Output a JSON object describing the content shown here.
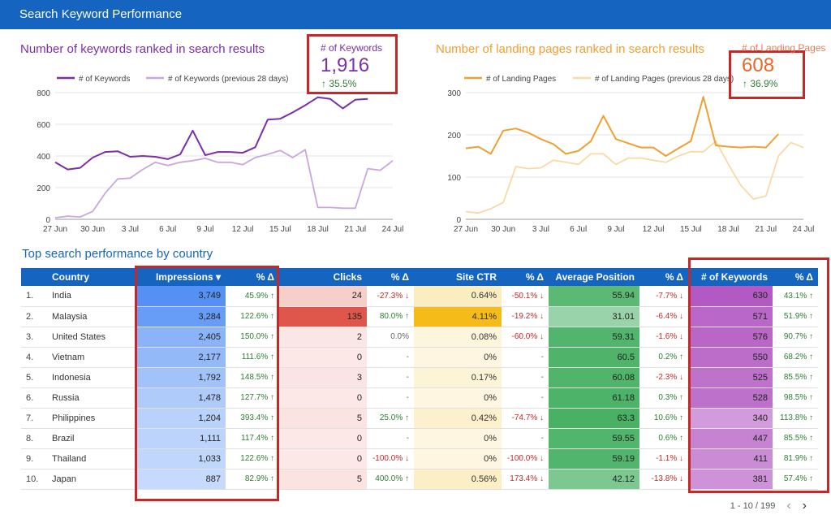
{
  "header": {
    "title": "Search Keyword Performance"
  },
  "chart_data": [
    {
      "type": "line",
      "title": "Number of keywords ranked in search results",
      "x": [
        "27 Jun",
        "28 Jun",
        "29 Jun",
        "30 Jun",
        "1 Jul",
        "2 Jul",
        "3 Jul",
        "4 Jul",
        "5 Jul",
        "6 Jul",
        "7 Jul",
        "8 Jul",
        "9 Jul",
        "10 Jul",
        "11 Jul",
        "12 Jul",
        "13 Jul",
        "14 Jul",
        "15 Jul",
        "16 Jul",
        "17 Jul",
        "18 Jul",
        "19 Jul",
        "20 Jul",
        "21 Jul",
        "22 Jul",
        "23 Jul",
        "24 Jul"
      ],
      "x_ticks": [
        "27 Jun",
        "30 Jun",
        "3 Jul",
        "6 Jul",
        "9 Jul",
        "12 Jul",
        "15 Jul",
        "18 Jul",
        "21 Jul",
        "24 Jul"
      ],
      "ylim": [
        0,
        800
      ],
      "y_ticks": [
        0,
        200,
        400,
        600,
        800
      ],
      "colors": {
        "current": "#7b2fa8",
        "previous": "#c9a6e0"
      },
      "legend": [
        "# of Keywords",
        "# of Keywords (previous 28 days)"
      ],
      "series": [
        {
          "name": "# of Keywords",
          "values": [
            360,
            315,
            325,
            390,
            425,
            430,
            395,
            400,
            395,
            380,
            410,
            560,
            405,
            425,
            425,
            420,
            455,
            630,
            635,
            675,
            720,
            770,
            760,
            700,
            755,
            760,
            null,
            null
          ]
        },
        {
          "name": "# of Keywords (previous 28 days)",
          "values": [
            10,
            20,
            15,
            50,
            165,
            255,
            260,
            315,
            360,
            340,
            360,
            370,
            385,
            360,
            360,
            345,
            390,
            410,
            435,
            390,
            440,
            75,
            75,
            70,
            70,
            320,
            310,
            370
          ]
        }
      ]
    },
    {
      "type": "line",
      "title": "Number of landing pages ranked in search results",
      "x": [
        "27 Jun",
        "28 Jun",
        "29 Jun",
        "30 Jun",
        "1 Jul",
        "2 Jul",
        "3 Jul",
        "4 Jul",
        "5 Jul",
        "6 Jul",
        "7 Jul",
        "8 Jul",
        "9 Jul",
        "10 Jul",
        "11 Jul",
        "12 Jul",
        "13 Jul",
        "14 Jul",
        "15 Jul",
        "16 Jul",
        "17 Jul",
        "18 Jul",
        "19 Jul",
        "20 Jul",
        "21 Jul",
        "22 Jul",
        "23 Jul",
        "24 Jul"
      ],
      "x_ticks": [
        "27 Jun",
        "30 Jun",
        "3 Jul",
        "6 Jul",
        "9 Jul",
        "12 Jul",
        "15 Jul",
        "18 Jul",
        "21 Jul",
        "24 Jul"
      ],
      "ylim": [
        0,
        300
      ],
      "y_ticks": [
        0,
        100,
        200,
        300
      ],
      "colors": {
        "current": "#f0a030",
        "previous": "#fad9a6"
      },
      "legend": [
        "# of Landing Pages",
        "# of Landing Pages (previous 28 days)"
      ],
      "series": [
        {
          "name": "# of Landing Pages",
          "values": [
            168,
            172,
            155,
            210,
            215,
            205,
            190,
            178,
            155,
            162,
            185,
            245,
            190,
            180,
            170,
            170,
            150,
            168,
            185,
            290,
            175,
            172,
            170,
            172,
            170,
            202,
            null,
            null
          ]
        },
        {
          "name": "# of Landing Pages (previous 28 days)",
          "values": [
            18,
            15,
            25,
            40,
            125,
            120,
            122,
            140,
            135,
            130,
            155,
            155,
            130,
            145,
            145,
            140,
            135,
            150,
            160,
            160,
            185,
            130,
            80,
            48,
            55,
            150,
            182,
            170
          ]
        }
      ]
    }
  ],
  "kpi_keywords": {
    "label": "# of Keywords",
    "value": "1,916",
    "delta": "↑ 35.5%"
  },
  "kpi_landing": {
    "label": "# of Landing Pages",
    "value": "608",
    "delta": "↑ 36.9%"
  },
  "table": {
    "title": "Top search performance by country",
    "headers": [
      "Country",
      "Impressions ▾",
      "% Δ",
      "Clicks",
      "% Δ",
      "Site CTR",
      "% Δ",
      "Average Position",
      "% Δ",
      "# of Keywords",
      "% Δ"
    ],
    "colors": {
      "impressions": "#4285f4",
      "clicks": "#db4437",
      "ctr": "#f4b400",
      "position": "#34a853",
      "keywords": "#ab47bc"
    },
    "rows": [
      {
        "idx": "1.",
        "country": "India",
        "impressions": "3,749",
        "imp_d": "45.9% ↑",
        "clicks": "24",
        "clk_d": "-27.3% ↓",
        "ctr": "0.64%",
        "ctr_d": "-50.1% ↓",
        "pos": "55.94",
        "pos_d": "-7.7% ↓",
        "kw": "630",
        "kw_d": "43.1% ↑",
        "imp_v": 3749,
        "clk_v": 24,
        "ctr_v": 0.64,
        "pos_v": 55.94,
        "kw_v": 630
      },
      {
        "idx": "2.",
        "country": "Malaysia",
        "impressions": "3,284",
        "imp_d": "122.6% ↑",
        "clicks": "135",
        "clk_d": "80.0% ↑",
        "ctr": "4.11%",
        "ctr_d": "-19.2% ↓",
        "pos": "31.01",
        "pos_d": "-6.4% ↓",
        "kw": "571",
        "kw_d": "51.9% ↑",
        "imp_v": 3284,
        "clk_v": 135,
        "ctr_v": 4.11,
        "pos_v": 31.01,
        "kw_v": 571
      },
      {
        "idx": "3.",
        "country": "United States",
        "impressions": "2,405",
        "imp_d": "150.0% ↑",
        "clicks": "2",
        "clk_d": "0.0%",
        "ctr": "0.08%",
        "ctr_d": "-60.0% ↓",
        "pos": "59.31",
        "pos_d": "-1.6% ↓",
        "kw": "576",
        "kw_d": "90.7% ↑",
        "imp_v": 2405,
        "clk_v": 2,
        "ctr_v": 0.08,
        "pos_v": 59.31,
        "kw_v": 576
      },
      {
        "idx": "4.",
        "country": "Vietnam",
        "impressions": "2,177",
        "imp_d": "111.6% ↑",
        "clicks": "0",
        "clk_d": "-",
        "ctr": "0%",
        "ctr_d": "-",
        "pos": "60.5",
        "pos_d": "0.2% ↑",
        "kw": "550",
        "kw_d": "68.2% ↑",
        "imp_v": 2177,
        "clk_v": 0,
        "ctr_v": 0,
        "pos_v": 60.5,
        "kw_v": 550
      },
      {
        "idx": "5.",
        "country": "Indonesia",
        "impressions": "1,792",
        "imp_d": "148.5% ↑",
        "clicks": "3",
        "clk_d": "-",
        "ctr": "0.17%",
        "ctr_d": "-",
        "pos": "60.08",
        "pos_d": "-2.3% ↓",
        "kw": "525",
        "kw_d": "85.5% ↑",
        "imp_v": 1792,
        "clk_v": 3,
        "ctr_v": 0.17,
        "pos_v": 60.08,
        "kw_v": 525
      },
      {
        "idx": "6.",
        "country": "Russia",
        "impressions": "1,478",
        "imp_d": "127.7% ↑",
        "clicks": "0",
        "clk_d": "-",
        "ctr": "0%",
        "ctr_d": "-",
        "pos": "61.18",
        "pos_d": "0.3% ↑",
        "kw": "528",
        "kw_d": "98.5% ↑",
        "imp_v": 1478,
        "clk_v": 0,
        "ctr_v": 0,
        "pos_v": 61.18,
        "kw_v": 528
      },
      {
        "idx": "7.",
        "country": "Philippines",
        "impressions": "1,204",
        "imp_d": "393.4% ↑",
        "clicks": "5",
        "clk_d": "25.0% ↑",
        "ctr": "0.42%",
        "ctr_d": "-74.7% ↓",
        "pos": "63.3",
        "pos_d": "10.6% ↑",
        "kw": "340",
        "kw_d": "113.8% ↑",
        "imp_v": 1204,
        "clk_v": 5,
        "ctr_v": 0.42,
        "pos_v": 63.3,
        "kw_v": 340
      },
      {
        "idx": "8.",
        "country": "Brazil",
        "impressions": "1,111",
        "imp_d": "117.4% ↑",
        "clicks": "0",
        "clk_d": "-",
        "ctr": "0%",
        "ctr_d": "-",
        "pos": "59.55",
        "pos_d": "0.6% ↑",
        "kw": "447",
        "kw_d": "85.5% ↑",
        "imp_v": 1111,
        "clk_v": 0,
        "ctr_v": 0,
        "pos_v": 59.55,
        "kw_v": 447
      },
      {
        "idx": "9.",
        "country": "Thailand",
        "impressions": "1,033",
        "imp_d": "122.6% ↑",
        "clicks": "0",
        "clk_d": "-100.0% ↓",
        "ctr": "0%",
        "ctr_d": "-100.0% ↓",
        "pos": "59.19",
        "pos_d": "-1.1% ↓",
        "kw": "411",
        "kw_d": "81.9% ↑",
        "imp_v": 1033,
        "clk_v": 0,
        "ctr_v": 0,
        "pos_v": 59.19,
        "kw_v": 411
      },
      {
        "idx": "10.",
        "country": "Japan",
        "impressions": "887",
        "imp_d": "82.9% ↑",
        "clicks": "5",
        "clk_d": "400.0% ↑",
        "ctr": "0.56%",
        "ctr_d": "173.4% ↓",
        "pos": "42.12",
        "pos_d": "-13.8% ↓",
        "kw": "381",
        "kw_d": "57.4% ↑",
        "imp_v": 887,
        "clk_v": 5,
        "ctr_v": 0.56,
        "pos_v": 42.12,
        "kw_v": 381
      }
    ]
  },
  "pager": {
    "range": "1 - 10 / 199",
    "prev_icon": "chevron-left-icon",
    "next_icon": "chevron-right-icon"
  }
}
